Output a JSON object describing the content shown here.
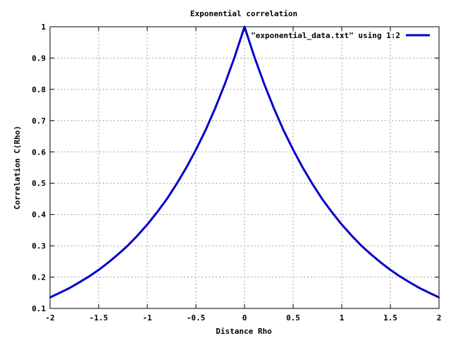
{
  "chart_data": {
    "type": "line",
    "title": "Exponential correlation",
    "xlabel": "Distance Rho",
    "ylabel": "Correlation C(Rho)",
    "xlim": [
      -2,
      2
    ],
    "ylim": [
      0.1,
      1
    ],
    "x_ticks": [
      -2,
      -1.5,
      -1,
      -0.5,
      0,
      0.5,
      1,
      1.5,
      2
    ],
    "x_tick_labels": [
      "-2",
      "-1.5",
      "-1",
      "-0.5",
      "0",
      "0.5",
      "1",
      "1.5",
      "2"
    ],
    "y_ticks": [
      0.1,
      0.2,
      0.3,
      0.4,
      0.5,
      0.6,
      0.7,
      0.8,
      0.9,
      1.0
    ],
    "y_tick_labels": [
      "0.1",
      "0.2",
      "0.3",
      "0.4",
      "0.5",
      "0.6",
      "0.7",
      "0.8",
      "0.9",
      "1"
    ],
    "grid": true,
    "legend_position": "top-right",
    "series": [
      {
        "name": "\"exponential_data.txt\" using 1:2",
        "color": "#0000cc",
        "x": [
          -2,
          -1.9,
          -1.8,
          -1.7,
          -1.6,
          -1.5,
          -1.4,
          -1.3,
          -1.2,
          -1.1,
          -1,
          -0.9,
          -0.8,
          -0.7,
          -0.6,
          -0.5,
          -0.4,
          -0.3,
          -0.2,
          -0.1,
          0,
          0.1,
          0.2,
          0.3,
          0.4,
          0.5,
          0.6,
          0.7,
          0.8,
          0.9,
          1,
          1.1,
          1.2,
          1.3,
          1.4,
          1.5,
          1.6,
          1.7,
          1.8,
          1.9,
          2
        ],
        "y": [
          0.135,
          0.15,
          0.165,
          0.183,
          0.202,
          0.223,
          0.247,
          0.273,
          0.301,
          0.333,
          0.368,
          0.407,
          0.449,
          0.497,
          0.549,
          0.607,
          0.67,
          0.741,
          0.819,
          0.905,
          1.0,
          0.905,
          0.819,
          0.741,
          0.67,
          0.607,
          0.549,
          0.497,
          0.449,
          0.407,
          0.368,
          0.333,
          0.301,
          0.273,
          0.247,
          0.223,
          0.202,
          0.183,
          0.165,
          0.15,
          0.135
        ]
      }
    ]
  }
}
